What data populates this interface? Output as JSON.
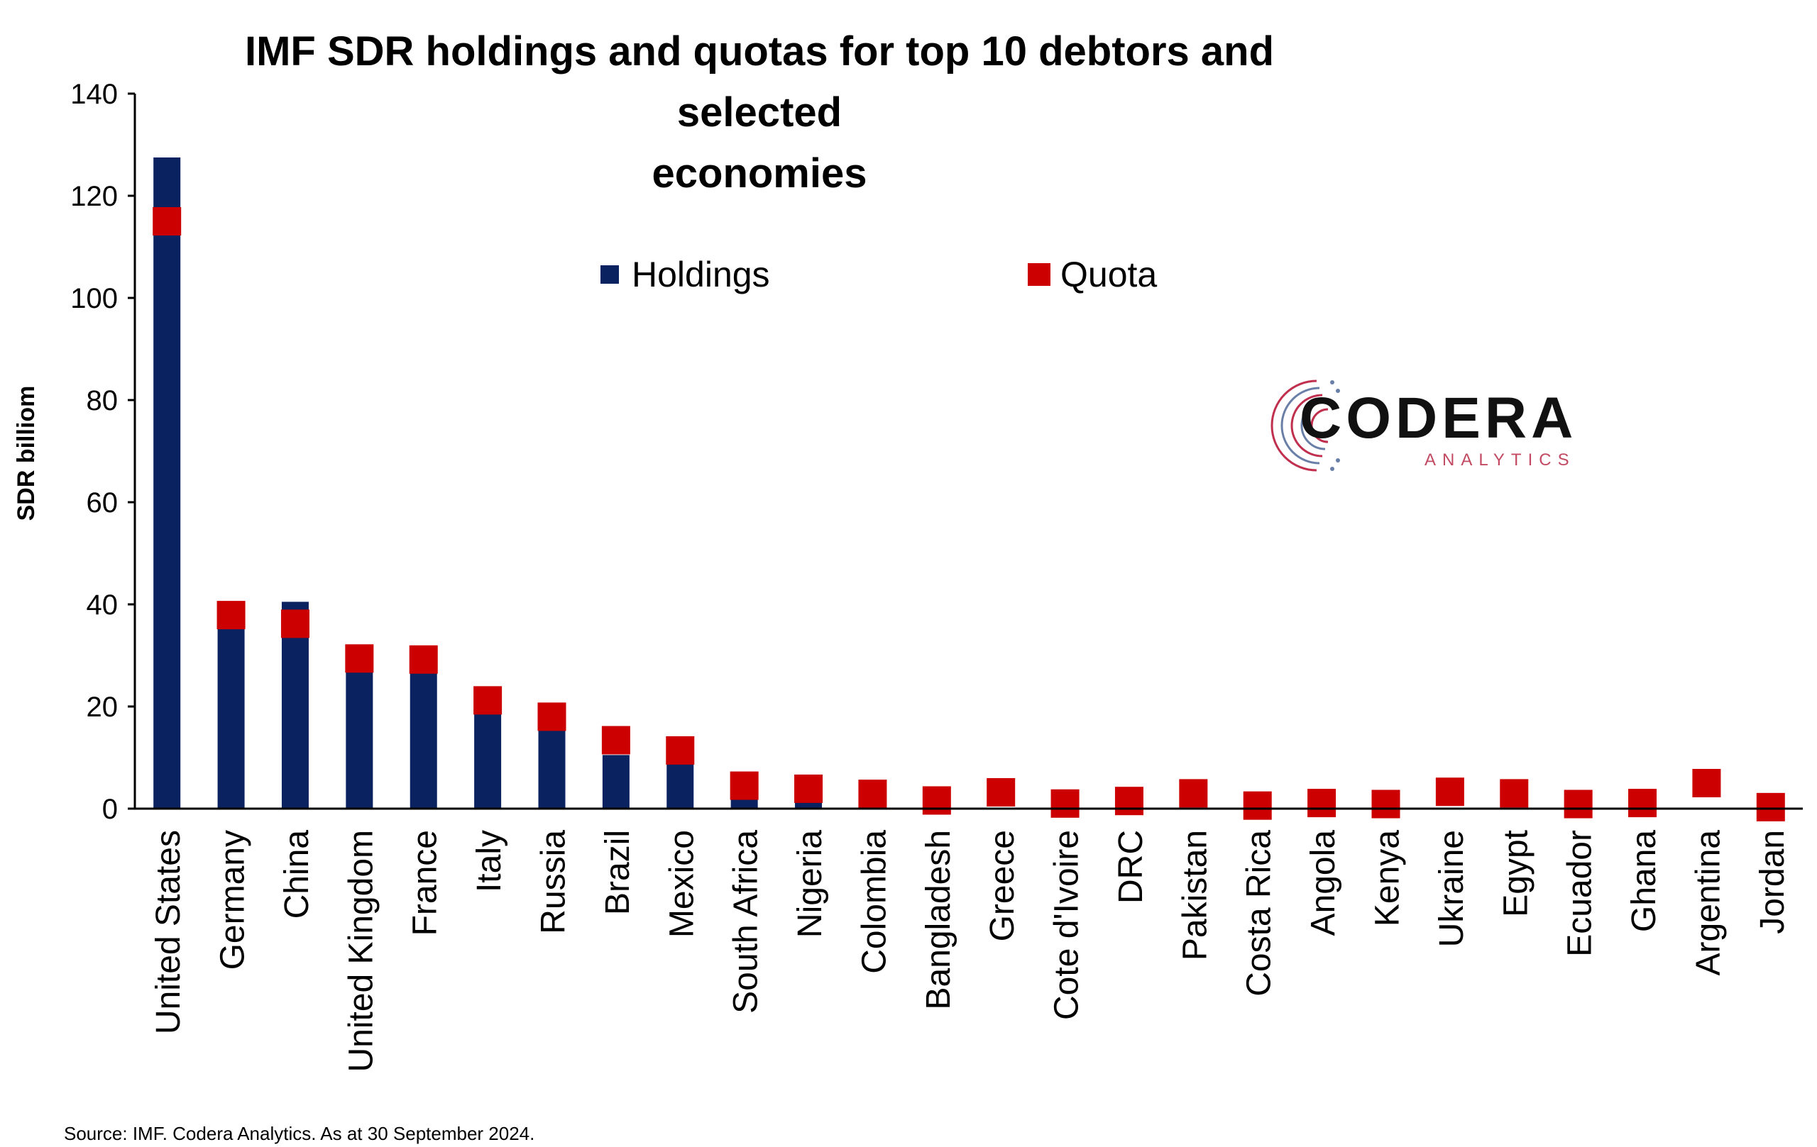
{
  "title_lines": [
    "IMF SDR holdings and quotas for top 10 debtors and selected",
    "economies"
  ],
  "source": "Source: IMF. Codera Analytics. As at 30 September 2024.",
  "logo": {
    "name": "CODERA",
    "sub": "ANALYTICS"
  },
  "colors": {
    "holdings": "#0b2260",
    "quota": "#cc0000"
  },
  "chart_data": {
    "type": "bar",
    "title": "IMF SDR holdings and quotas for top 10 debtors and selected economies",
    "ylabel": "SDR billiom",
    "ylim": [
      0,
      140
    ],
    "yticks": [
      0,
      20,
      40,
      60,
      80,
      100,
      120,
      140
    ],
    "legend_position": "top-center",
    "categories": [
      "United States",
      "Germany",
      "China",
      "United Kingdom",
      "France",
      "Italy",
      "Russia",
      "Brazil",
      "Mexico",
      "South Africa",
      "Nigeria",
      "Colombia",
      "Bangladesh",
      "Greece",
      "Cote d'Ivoire",
      "DRC",
      "Pakistan",
      "Costa Rica",
      "Angola",
      "Kenya",
      "Ukraine",
      "Egypt",
      "Ecuador",
      "Ghana",
      "Argentina",
      "Jordan"
    ],
    "series": [
      {
        "name": "Holdings",
        "kind": "bar",
        "values": [
          127.5,
          35.5,
          40.5,
          26.8,
          26.8,
          18.5,
          15.5,
          10.5,
          8.8,
          2.2,
          1.5,
          0.1,
          0.1,
          0.1,
          0.1,
          0.1,
          0.1,
          0.1,
          0.1,
          0.1,
          0.1,
          0.1,
          0.1,
          0.1,
          0.1,
          0.1
        ]
      },
      {
        "name": "Quota",
        "kind": "marker",
        "values": [
          115.0,
          37.9,
          36.2,
          29.4,
          29.2,
          21.2,
          18.0,
          13.4,
          11.4,
          4.5,
          3.9,
          2.9,
          1.6,
          3.2,
          1.0,
          1.5,
          3.0,
          0.6,
          1.1,
          0.9,
          3.3,
          3.0,
          0.9,
          1.1,
          5.0,
          0.3
        ]
      }
    ]
  }
}
